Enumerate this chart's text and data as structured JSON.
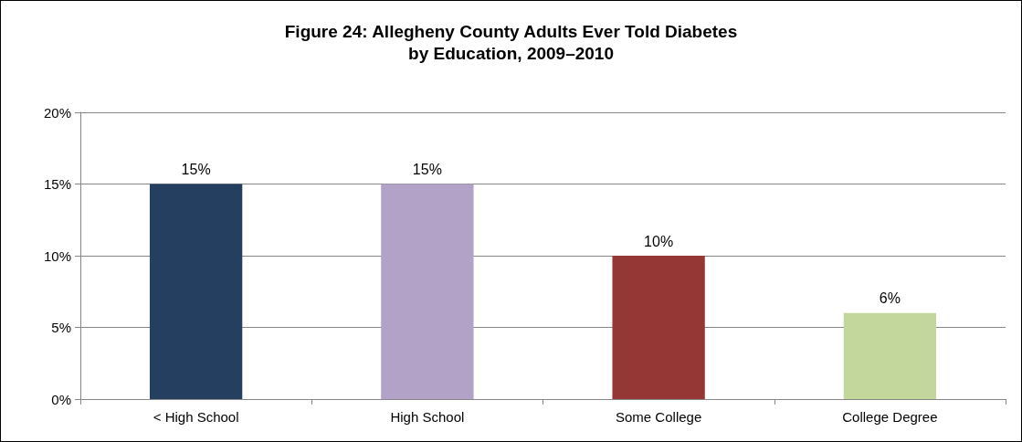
{
  "chart_data": {
    "type": "bar",
    "title": "Figure 24: Allegheny County Adults Ever Told Diabetes\nby Education, 2009–2010",
    "categories": [
      "< High School",
      "High School",
      "Some College",
      "College Degree"
    ],
    "values": [
      15,
      15,
      10,
      6
    ],
    "colors": [
      "#243f60",
      "#b3a2c7",
      "#953735",
      "#c3d69b"
    ],
    "value_labels": [
      "15%",
      "15%",
      "10%",
      "6%"
    ],
    "ylim": [
      0,
      20
    ],
    "yticks": [
      {
        "value": 0,
        "label": "0%"
      },
      {
        "value": 5,
        "label": "5%"
      },
      {
        "value": 10,
        "label": "10%"
      },
      {
        "value": 15,
        "label": "15%"
      },
      {
        "value": 20,
        "label": "20%"
      }
    ],
    "grid": "y"
  }
}
